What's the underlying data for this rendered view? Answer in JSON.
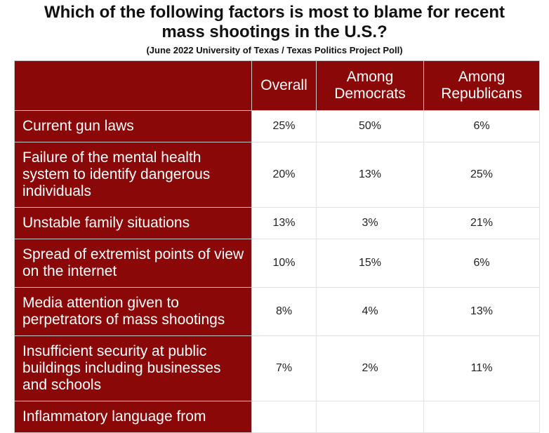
{
  "header": {
    "title": "Which of the following factors is most to blame for recent mass shootings in the U.S.?",
    "subtitle": "(June 2022 University of Texas / Texas Politics Project Poll)"
  },
  "table": {
    "columns": [
      "Overall",
      "Among Democrats",
      "Among Republicans"
    ],
    "rows": [
      {
        "label": "Current gun laws",
        "values": [
          "25%",
          "50%",
          "6%"
        ]
      },
      {
        "label": "Failure of the mental health system to identify dangerous individuals",
        "values": [
          "20%",
          "13%",
          "25%"
        ]
      },
      {
        "label": "Unstable family situations",
        "values": [
          "13%",
          "3%",
          "21%"
        ]
      },
      {
        "label": "Spread of extremist points of view on the internet",
        "values": [
          "10%",
          "15%",
          "6%"
        ]
      },
      {
        "label": "Media attention given to perpetrators of mass shootings",
        "values": [
          "8%",
          "4%",
          "13%"
        ]
      },
      {
        "label": "Insufficient security at public buildings including businesses and schools",
        "values": [
          "7%",
          "2%",
          "11%"
        ]
      },
      {
        "label": "Inflammatory language from"
      }
    ]
  }
}
